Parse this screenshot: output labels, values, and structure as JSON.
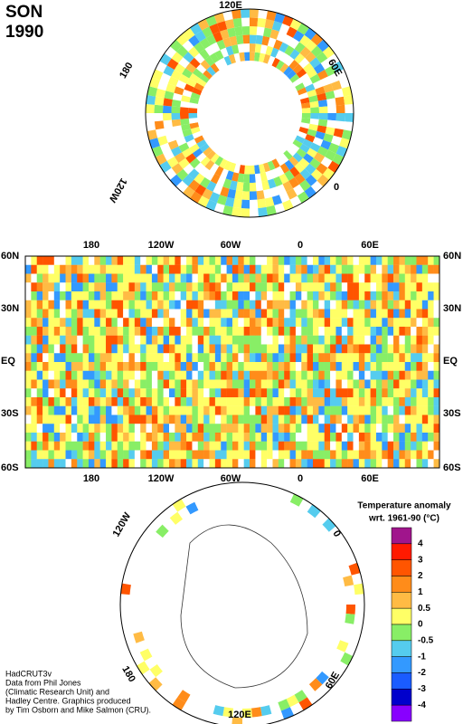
{
  "header": {
    "season": "SON",
    "year": "1990"
  },
  "north_pole_labels": [
    "120E",
    "60E",
    "0",
    "120W",
    "180"
  ],
  "map": {
    "top_labels": [
      "180",
      "120W",
      "60W",
      "0",
      "60E"
    ],
    "bottom_labels": [
      "180",
      "120W",
      "60W",
      "0",
      "60E"
    ],
    "left_labels": [
      "60N",
      "30N",
      "EQ",
      "30S",
      "60S"
    ],
    "right_labels": [
      "60N",
      "30N",
      "EQ",
      "30S",
      "60S"
    ]
  },
  "south_pole_labels": [
    "120W",
    "0",
    "60E",
    "120E",
    "180"
  ],
  "legend": {
    "title": "Temperature anomaly",
    "subtitle": "wrt. 1961-90  (°C)",
    "labels": [
      "4",
      "3",
      "2",
      "1",
      "0.5",
      "0",
      "-0.5",
      "-1",
      "-2",
      "-3",
      "-4"
    ],
    "colors": [
      "#a0158c",
      "#ff1a00",
      "#ff5500",
      "#ff8c1a",
      "#ffbb44",
      "#ffff66",
      "#88ee66",
      "#55ccee",
      "#3399ff",
      "#1a5cff",
      "#0000cc",
      "#8800ff"
    ]
  },
  "credits": [
    "HadCRUT3v",
    "Data from Phil Jones",
    "(Climatic Research Unit) and",
    "Hadley Centre.  Graphics produced",
    "by Tim Osborn and Mike Salmon (CRU)."
  ]
}
